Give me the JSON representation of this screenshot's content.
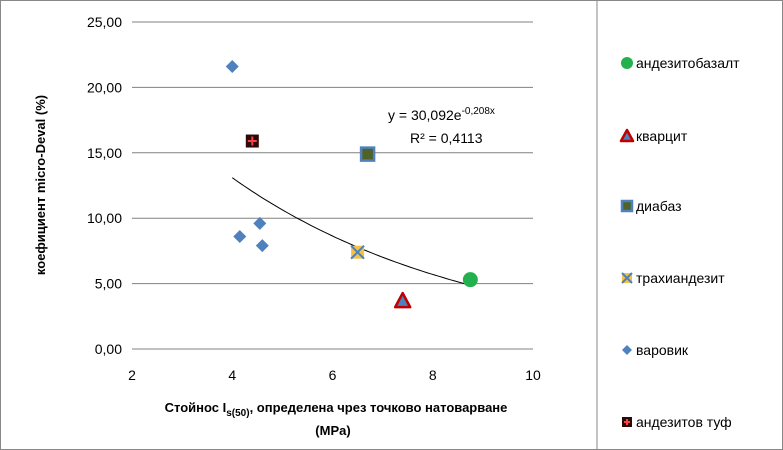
{
  "chart_data": {
    "type": "scatter",
    "xlabel_main": "Стойнос I",
    "xlabel_sub": "s(50)",
    "xlabel_rest": ", определена чрез точково натоварване",
    "xlabel_line2": "(MPa)",
    "ylabel": "коефициент micro-Deval  (%)",
    "xlim": [
      2,
      10
    ],
    "ylim": [
      0,
      25
    ],
    "x_ticks": [
      "2",
      "4",
      "6",
      "8",
      "10"
    ],
    "y_ticks": [
      "0,00",
      "5,00",
      "10,00",
      "15,00",
      "20,00",
      "25,00"
    ],
    "grid": "horizontal",
    "legend_position": "right",
    "series": [
      {
        "name": "андезитобазалт",
        "marker": "circle",
        "color": "#22b14c",
        "points": [
          [
            8.75,
            5.3
          ]
        ]
      },
      {
        "name": "кварцит",
        "marker": "triangle",
        "color": "#c00000",
        "fill": "#4f81bd",
        "points": [
          [
            7.4,
            3.7
          ]
        ]
      },
      {
        "name": "диабаз",
        "marker": "square",
        "color": "#4f81bd",
        "fill": "#4f6228",
        "points": [
          [
            6.7,
            14.9
          ]
        ]
      },
      {
        "name": "трахиандезит",
        "marker": "square-x",
        "color": "#f5c242",
        "points": [
          [
            6.5,
            7.4
          ]
        ]
      },
      {
        "name": "варовик",
        "marker": "diamond",
        "color": "#4f81bd",
        "points": [
          [
            4.0,
            21.6
          ],
          [
            4.15,
            8.6
          ],
          [
            4.55,
            9.6
          ],
          [
            4.6,
            7.9
          ]
        ]
      },
      {
        "name": "андезитов туф",
        "marker": "square-plus",
        "color": "#2b0a0a",
        "points": [
          [
            4.4,
            15.9
          ]
        ]
      }
    ],
    "trendline": {
      "type": "exponential",
      "a": 30.092,
      "b": -0.208,
      "x_range": [
        4,
        8.75
      ],
      "equation_text": "y = 30,092e",
      "equation_exponent": "-0,208x",
      "r2_text": "R² = 0,4113"
    }
  }
}
